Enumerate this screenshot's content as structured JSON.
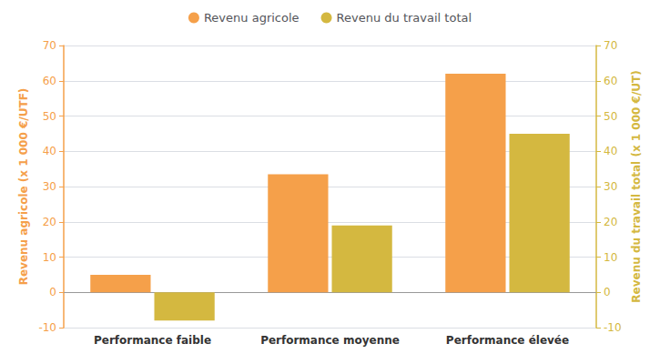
{
  "chart_data": {
    "type": "bar",
    "categories": [
      "Performance faible",
      "Performance moyenne",
      "Performance élevée"
    ],
    "series": [
      {
        "name": "Revenu agricole",
        "color": "#F5A04A",
        "values": [
          5,
          33.5,
          62
        ]
      },
      {
        "name": "Revenu du travail total",
        "color": "#D4B840",
        "values": [
          -8,
          19,
          45
        ],
        "axis": "y2"
      }
    ],
    "ylabel": "Revenu agricole (x 1 000 €/UTF)",
    "y2label": "Revenu du travail total (x 1 000 €/UT)",
    "ylim": [
      -10,
      70
    ],
    "yticks": [
      -10,
      0,
      10,
      20,
      30,
      40,
      50,
      60,
      70
    ],
    "y2lim": [
      -10,
      70
    ],
    "y2ticks": [
      -10,
      0,
      10,
      20,
      30,
      40,
      50,
      60,
      70
    ],
    "grid": true,
    "legend": "upper center"
  }
}
